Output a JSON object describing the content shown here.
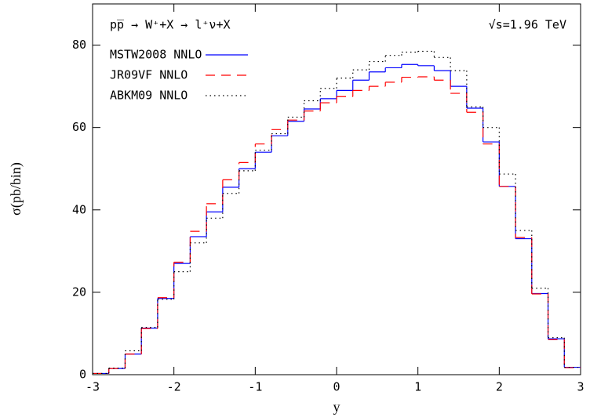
{
  "chart_data": {
    "type": "histogram",
    "annotations": [
      "pp̅ → W⁺+X → l⁺ν+X",
      "√s=1.96 TeV"
    ],
    "xlabel": "y",
    "ylabel": "σ(pb/bin)",
    "bins": [
      -3,
      -2.8,
      -2.6,
      -2.4,
      -2.2,
      -2,
      -1.8,
      -1.6,
      -1.4,
      -1.2,
      -1,
      -0.8,
      -0.6,
      -0.4,
      -0.2,
      0,
      0.2,
      0.4,
      0.6,
      0.8,
      1,
      1.2,
      1.4,
      1.6,
      1.8,
      2,
      2.2,
      2.4,
      2.6,
      2.8,
      3
    ],
    "series": [
      {
        "name": "MSTW2008  NNLO",
        "color": "#0000ff",
        "line_style": "solid",
        "values": [
          0.3,
          1.5,
          5,
          11.3,
          18.5,
          27,
          33.5,
          39.5,
          45.5,
          50,
          54,
          58,
          61.5,
          64.5,
          67,
          69,
          71.5,
          73.5,
          74.5,
          75.3,
          75,
          73.8,
          70,
          64.7,
          56.5,
          45.7,
          33,
          19.7,
          8.7,
          1.8
        ]
      },
      {
        "name": "JR09VF  NNLO",
        "color": "#ff0000",
        "line_style": "dashed",
        "values": [
          0.3,
          1.5,
          5,
          11.2,
          18.7,
          27.3,
          34.8,
          41.5,
          47.3,
          51.5,
          56,
          59.5,
          61.8,
          64,
          66,
          67.5,
          69,
          70,
          71,
          72.2,
          72.3,
          71.5,
          68.3,
          63.7,
          56,
          45.7,
          33.3,
          19.6,
          8.5,
          1.7
        ]
      },
      {
        "name": "ABKM09  NNLO",
        "color": "#000000",
        "line_style": "dotted",
        "values": [
          0.3,
          1.6,
          5.8,
          11.5,
          18.3,
          25,
          32,
          38,
          44,
          49.5,
          54.5,
          58.5,
          62.5,
          66.5,
          69.5,
          72,
          74,
          76,
          77.5,
          78.3,
          78.5,
          77,
          73.8,
          65,
          60,
          48.7,
          35,
          21,
          9,
          1.8
        ]
      }
    ],
    "xlim": [
      -3,
      3
    ],
    "xticks": [
      -3,
      -2,
      -1,
      0,
      1,
      2,
      3
    ],
    "ylim": [
      0,
      90
    ],
    "yticks": [
      0,
      20,
      40,
      60,
      80
    ]
  }
}
